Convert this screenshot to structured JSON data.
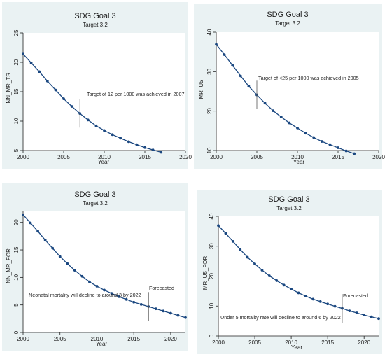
{
  "chart_data": [
    {
      "type": "line",
      "title": "SDG Goal 3",
      "subtitle": "Target 3.2",
      "xlabel": "Year",
      "ylabel": "NN_MR_TS",
      "xlim": [
        2000,
        2020
      ],
      "ylim": [
        5,
        25
      ],
      "xticks": [
        2000,
        2005,
        2010,
        2015,
        2020
      ],
      "yticks": [
        5,
        10,
        15,
        20,
        25
      ],
      "grid": false,
      "background_color": "#eaf2f3",
      "line_color": "#1a4780",
      "x": [
        2000,
        2001,
        2002,
        2003,
        2004,
        2005,
        2006,
        2007,
        2008,
        2009,
        2010,
        2011,
        2012,
        2013,
        2014,
        2015,
        2016,
        2017
      ],
      "series": [
        {
          "values": [
            21.4,
            19.9,
            18.4,
            16.8,
            15.3,
            13.8,
            12.5,
            11.3,
            10.2,
            9.2,
            8.4,
            7.7,
            7.1,
            6.5,
            6.0,
            5.5,
            5.1,
            4.7
          ]
        }
      ],
      "annotations": [
        {
          "text": "Target of 12 per 1000 was achieved in 2007",
          "x": 2007,
          "y": 11.3
        }
      ]
    },
    {
      "type": "line",
      "title": "SDG Goal 3",
      "subtitle": "Target 3.2",
      "xlabel": "Year",
      "ylabel": "MR_U5",
      "xlim": [
        2000,
        2020
      ],
      "ylim": [
        10,
        40
      ],
      "xticks": [
        2000,
        2005,
        2010,
        2015,
        2020
      ],
      "yticks": [
        10,
        20,
        30,
        40
      ],
      "grid": false,
      "background_color": "#eaf2f3",
      "line_color": "#1a4780",
      "x": [
        2000,
        2001,
        2002,
        2003,
        2004,
        2005,
        2006,
        2007,
        2008,
        2009,
        2010,
        2011,
        2012,
        2013,
        2014,
        2015,
        2016,
        2017
      ],
      "series": [
        {
          "values": [
            36.9,
            34.3,
            31.6,
            28.9,
            26.3,
            24.1,
            22.0,
            20.1,
            18.5,
            17.0,
            15.7,
            14.4,
            13.3,
            12.3,
            11.5,
            10.7,
            9.9,
            9.2
          ]
        }
      ],
      "annotations": [
        {
          "text": "Target of <25 per 1000 was achieved in 2005",
          "x": 2005,
          "y": 24.1
        }
      ]
    },
    {
      "type": "line",
      "title": "SDG Goal 3",
      "subtitle": "Target 3.2",
      "xlabel": "Year",
      "ylabel": "NN_MR_FOR",
      "xlim": [
        2000,
        2022
      ],
      "ylim": [
        0,
        22
      ],
      "xticks": [
        2000,
        2005,
        2010,
        2015,
        2020
      ],
      "yticks": [
        0,
        5,
        10,
        15,
        20
      ],
      "grid": false,
      "background_color": "#eaf2f3",
      "line_color": "#1a4780",
      "x": [
        2000,
        2001,
        2002,
        2003,
        2004,
        2005,
        2006,
        2007,
        2008,
        2009,
        2010,
        2011,
        2012,
        2013,
        2014,
        2015,
        2016,
        2017,
        2018,
        2019,
        2020,
        2021,
        2022
      ],
      "series": [
        {
          "values": [
            21.4,
            19.9,
            18.4,
            16.8,
            15.3,
            13.8,
            12.5,
            11.3,
            10.2,
            9.2,
            8.4,
            7.7,
            7.1,
            6.5,
            6.0,
            5.5,
            5.1,
            4.7,
            4.3,
            3.9,
            3.5,
            3.1,
            2.7
          ]
        }
      ],
      "annotations": [
        {
          "text": "Forecasted",
          "x": 2017,
          "y": 4.7
        },
        {
          "text": "Neonatal mortality will decline to around 3 by 2022",
          "x": 2001,
          "y": 2.5
        }
      ]
    },
    {
      "type": "line",
      "title": "SDG Goal 3",
      "subtitle": "Target 3.2",
      "xlabel": "Year",
      "ylabel": "MR_U5_FOR",
      "xlim": [
        2000,
        2022
      ],
      "ylim": [
        0,
        40
      ],
      "xticks": [
        2000,
        2005,
        2010,
        2015,
        2020
      ],
      "yticks": [
        0,
        10,
        20,
        30,
        40
      ],
      "grid": false,
      "background_color": "#eaf2f3",
      "line_color": "#1a4780",
      "x": [
        2000,
        2001,
        2002,
        2003,
        2004,
        2005,
        2006,
        2007,
        2008,
        2009,
        2010,
        2011,
        2012,
        2013,
        2014,
        2015,
        2016,
        2017,
        2018,
        2019,
        2020,
        2021,
        2022
      ],
      "series": [
        {
          "values": [
            36.9,
            34.3,
            31.6,
            28.9,
            26.3,
            24.1,
            22.0,
            20.1,
            18.5,
            17.0,
            15.7,
            14.4,
            13.3,
            12.3,
            11.5,
            10.7,
            9.9,
            9.2,
            8.4,
            7.7,
            7.0,
            6.4,
            5.8
          ]
        }
      ],
      "annotations": [
        {
          "text": "Forecasted",
          "x": 2017,
          "y": 9.2
        },
        {
          "text": "Under 5 mortality rate will decline to around 6 by 2022",
          "x": 2001,
          "y": 4.5
        }
      ]
    }
  ]
}
